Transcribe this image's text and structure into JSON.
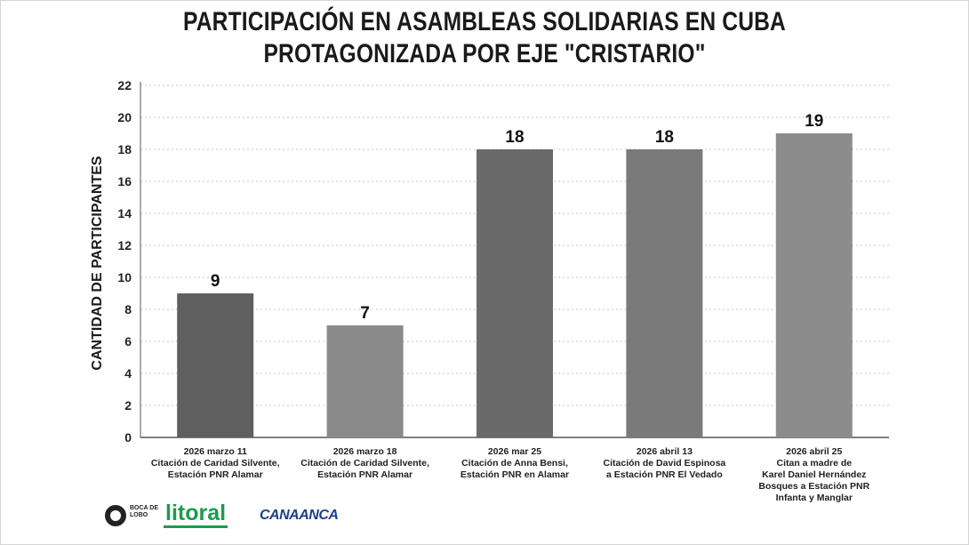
{
  "chart_data": {
    "type": "bar",
    "title_lines": [
      "PARTICIPACIÓN EN ASAMBLEAS SOLIDARIAS EN CUBA",
      "PROTAGONIZADA POR EJE \"CRISTARIO\""
    ],
    "ylabel": "CANTIDAD DE PARTICIPANTES",
    "xlabel": "",
    "ylim": [
      0,
      22
    ],
    "yticks": [
      0,
      2,
      4,
      6,
      8,
      10,
      12,
      14,
      16,
      18,
      20,
      22
    ],
    "grid": "horizontal-dotted",
    "categories": [
      [
        "2026 marzo 11",
        "Citación de Caridad Silvente,",
        "Estación PNR Alamar"
      ],
      [
        "2026 marzo 18",
        "Citación de Caridad Silvente,",
        "Estación PNR Alamar"
      ],
      [
        "2026 mar 25",
        "Citación de Anna Bensi,",
        "Estación PNR en Alamar"
      ],
      [
        "2026 abril 13",
        "Citación de David Espinosa",
        "a Estación PNR El Vedado"
      ],
      [
        "2026 abril 25",
        "Citan a madre de",
        "Karel Daniel Hernández",
        "Bosques a Estación PNR",
        "Infanta y Manglar"
      ]
    ],
    "values": [
      9,
      7,
      18,
      18,
      19
    ],
    "value_labels": [
      "9",
      "7",
      "18",
      "18",
      "19"
    ],
    "bar_colors": [
      "#5f5f5f",
      "#8a8a8a",
      "#6a6a6a",
      "#7a7a7a",
      "#8c8c8c"
    ]
  },
  "logos": {
    "boca": "BOCA DE LOBO",
    "litoral": "litoral",
    "third": "CANAANCA"
  }
}
